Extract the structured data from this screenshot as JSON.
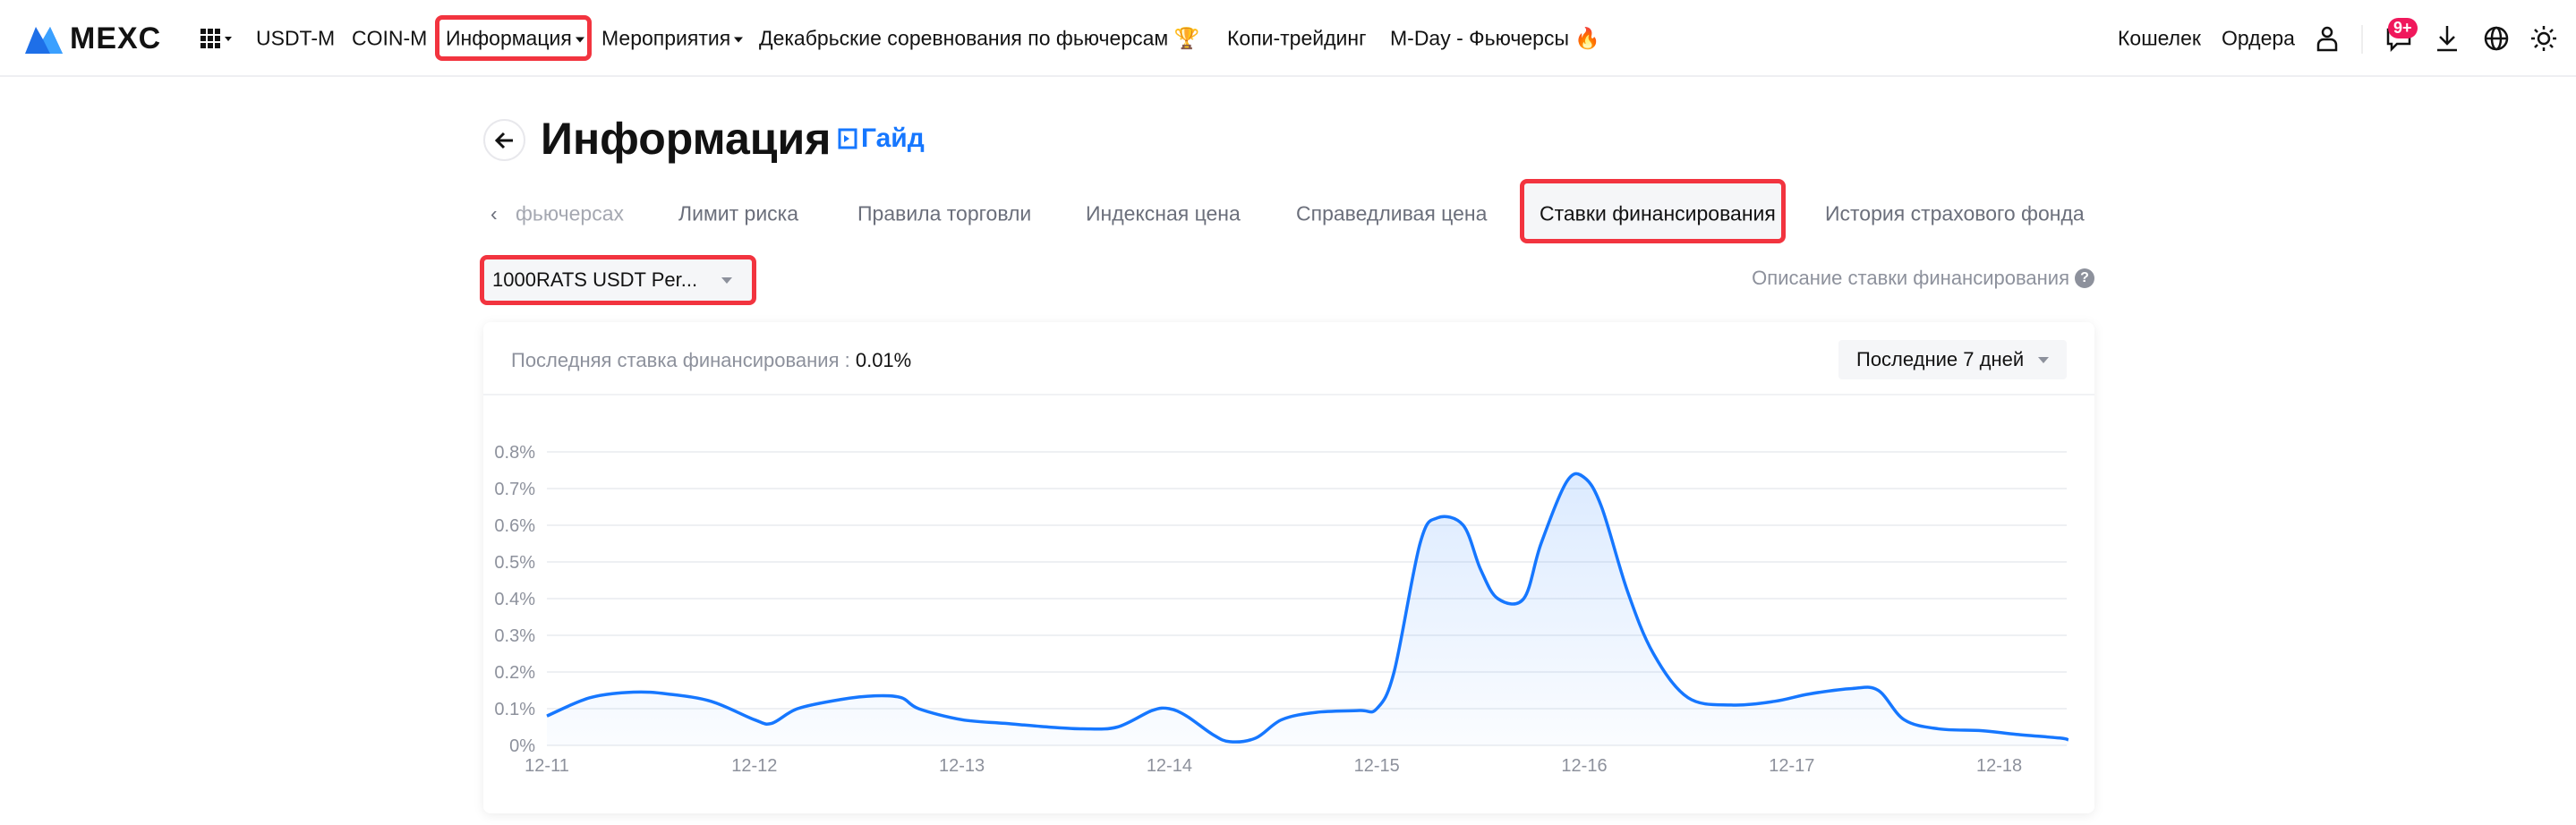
{
  "nav": {
    "logo": "MEXC",
    "items": [
      {
        "label": "USDT-M"
      },
      {
        "label": "COIN-M"
      },
      {
        "label": "Информация"
      },
      {
        "label": "Мероприятия"
      },
      {
        "label": "Декабрьские соревнования по фьючерсам"
      },
      {
        "label": "Копи-трейдинг"
      },
      {
        "label": "M-Day - Фьючерсы"
      }
    ],
    "right": {
      "wallet": "Кошелек",
      "orders": "Ордера",
      "notif_badge": "9+"
    }
  },
  "page": {
    "title": "Информация",
    "guide": "Гайд"
  },
  "tabs": [
    {
      "label": "фьючерсах"
    },
    {
      "label": "Лимит риска"
    },
    {
      "label": "Правила торговли"
    },
    {
      "label": "Индексная цена"
    },
    {
      "label": "Справедливая цена"
    },
    {
      "label": "Ставки финансирования",
      "active": true
    },
    {
      "label": "История страхового фонда"
    }
  ],
  "contract_select": {
    "value": "1000RATS USDT Per..."
  },
  "funding_desc_link": "Описание ставки финансирования",
  "card": {
    "latest_label": "Последняя ставка финансирования :",
    "latest_value": "0.01%",
    "period_select": "Последние 7 дней"
  },
  "colors": {
    "accent": "#1677ff",
    "highlight": "#f2343f",
    "badge": "#f0185c"
  },
  "chart_data": {
    "type": "area",
    "xlabel": "",
    "ylabel": "",
    "ylim": [
      0,
      0.8
    ],
    "y_ticks": [
      "0%",
      "0.1%",
      "0.2%",
      "0.3%",
      "0.4%",
      "0.5%",
      "0.6%",
      "0.7%",
      "0.8%"
    ],
    "x_ticks": [
      "12-11",
      "12-12",
      "12-13",
      "12-14",
      "12-15",
      "12-16",
      "12-17",
      "12-18"
    ],
    "grid": true,
    "line_color": "#1677ff",
    "unit": "%",
    "points": [
      [
        "12-11 00:00",
        0.08
      ],
      [
        "12-11 05:00",
        0.13
      ],
      [
        "12-11 10:00",
        0.145
      ],
      [
        "12-11 14:00",
        0.14
      ],
      [
        "12-11 19:00",
        0.12
      ],
      [
        "12-12 00:00",
        0.07
      ],
      [
        "12-12 02:00",
        0.06
      ],
      [
        "12-12 05:00",
        0.1
      ],
      [
        "12-12 10:00",
        0.125
      ],
      [
        "12-12 14:00",
        0.135
      ],
      [
        "12-12 17:00",
        0.13
      ],
      [
        "12-12 19:00",
        0.1
      ],
      [
        "12-13 00:00",
        0.07
      ],
      [
        "12-13 05:00",
        0.06
      ],
      [
        "12-13 10:00",
        0.05
      ],
      [
        "12-13 14:00",
        0.045
      ],
      [
        "12-13 18:00",
        0.05
      ],
      [
        "12-13 22:00",
        0.095
      ],
      [
        "12-14 00:00",
        0.1
      ],
      [
        "12-14 02:00",
        0.08
      ],
      [
        "12-14 05:00",
        0.03
      ],
      [
        "12-14 07:00",
        0.01
      ],
      [
        "12-14 10:00",
        0.02
      ],
      [
        "12-14 13:00",
        0.07
      ],
      [
        "12-14 17:00",
        0.09
      ],
      [
        "12-14 22:00",
        0.095
      ],
      [
        "12-15 00:00",
        0.1
      ],
      [
        "12-15 02:00",
        0.2
      ],
      [
        "12-15 05:00",
        0.55
      ],
      [
        "12-15 07:00",
        0.62
      ],
      [
        "12-15 10:00",
        0.6
      ],
      [
        "12-15 12:00",
        0.48
      ],
      [
        "12-15 14:00",
        0.4
      ],
      [
        "12-15 17:00",
        0.4
      ],
      [
        "12-15 19:00",
        0.55
      ],
      [
        "12-15 22:00",
        0.72
      ],
      [
        "12-16 00:00",
        0.73
      ],
      [
        "12-16 02:00",
        0.65
      ],
      [
        "12-16 05:00",
        0.42
      ],
      [
        "12-16 08:00",
        0.25
      ],
      [
        "12-16 12:00",
        0.13
      ],
      [
        "12-16 17:00",
        0.11
      ],
      [
        "12-16 22:00",
        0.12
      ],
      [
        "12-17 02:00",
        0.14
      ],
      [
        "12-17 07:00",
        0.155
      ],
      [
        "12-17 10:00",
        0.15
      ],
      [
        "12-17 13:00",
        0.07
      ],
      [
        "12-17 17:00",
        0.045
      ],
      [
        "12-17 22:00",
        0.04
      ],
      [
        "12-18 02:00",
        0.03
      ],
      [
        "12-18 07:00",
        0.02
      ],
      [
        "12-18 08:00",
        0.015
      ]
    ]
  }
}
